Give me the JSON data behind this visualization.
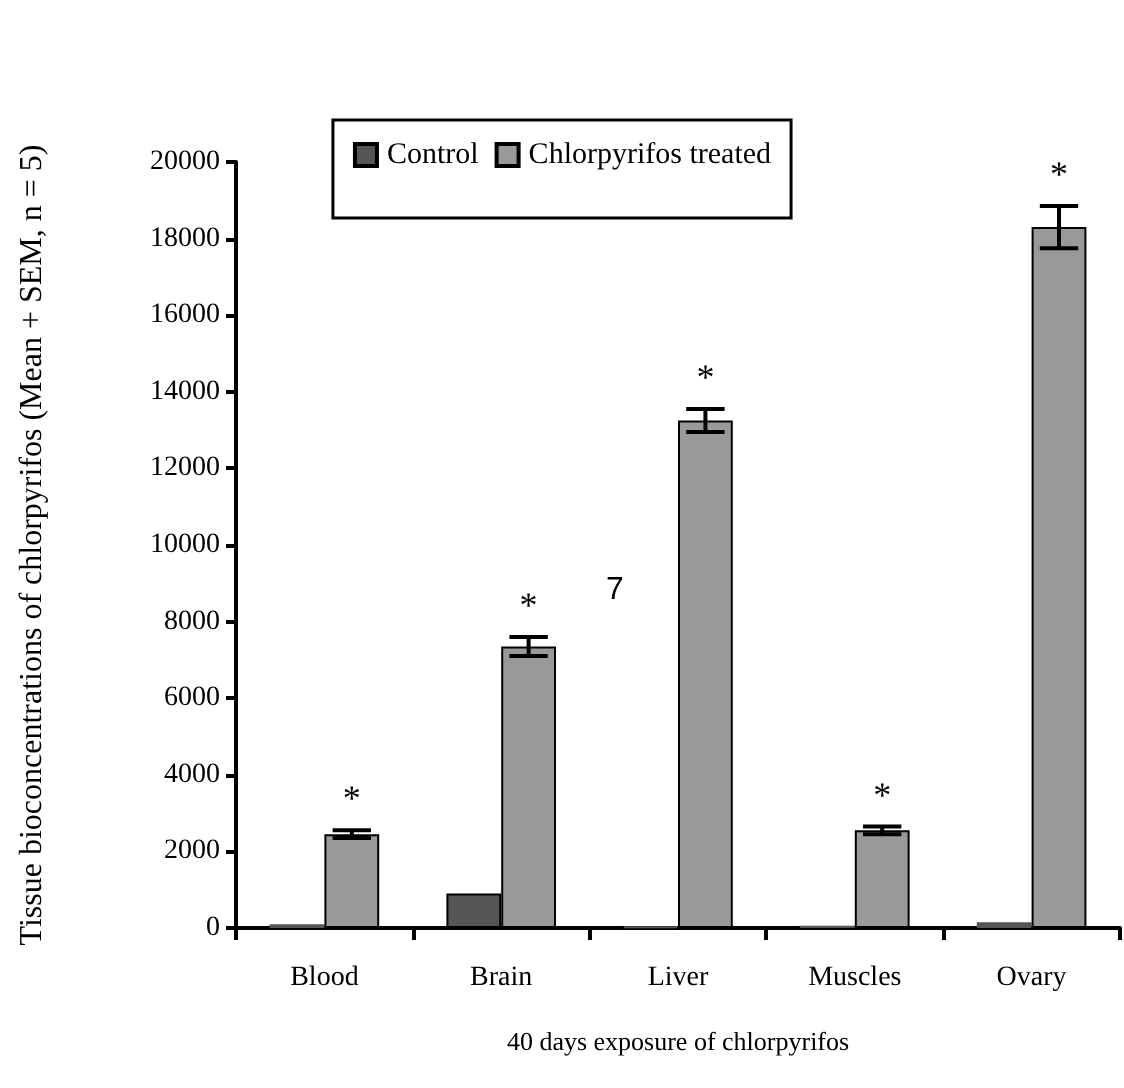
{
  "chart_data": {
    "type": "bar",
    "xlabel": "40 days exposure of chlorpyrifos",
    "ylabel": "Tissue bioconcentrations of chlorpyrifos (Mean + SEM, n = 5)",
    "categories": [
      "Blood",
      "Brain",
      "Liver",
      "Muscles",
      "Ovary"
    ],
    "series": [
      {
        "name": "Control",
        "color": "#555555",
        "values": [
          100,
          900,
          40,
          60,
          150
        ]
      },
      {
        "name": "Chlorpyrifos treated",
        "color": "#999999",
        "values": [
          2450,
          7350,
          13250,
          2550,
          18300
        ],
        "errors": [
          100,
          250,
          300,
          100,
          550
        ]
      }
    ],
    "ylim": [
      0,
      20000
    ],
    "yticks": [
      0,
      2000,
      4000,
      6000,
      8000,
      10000,
      12000,
      14000,
      16000,
      18000,
      20000
    ],
    "grid": false,
    "legend": "top",
    "annotations": [
      {
        "text": "*",
        "x": "Blood",
        "y": 2450
      },
      {
        "text": "*",
        "x": "Brain",
        "y": 7350
      },
      {
        "text": "*",
        "x": "Liver",
        "y": 13250
      },
      {
        "text": "*",
        "x": "Muscles",
        "y": 2550
      },
      {
        "text": "*",
        "x": "Ovary",
        "y": 18300
      },
      "7"
    ]
  }
}
